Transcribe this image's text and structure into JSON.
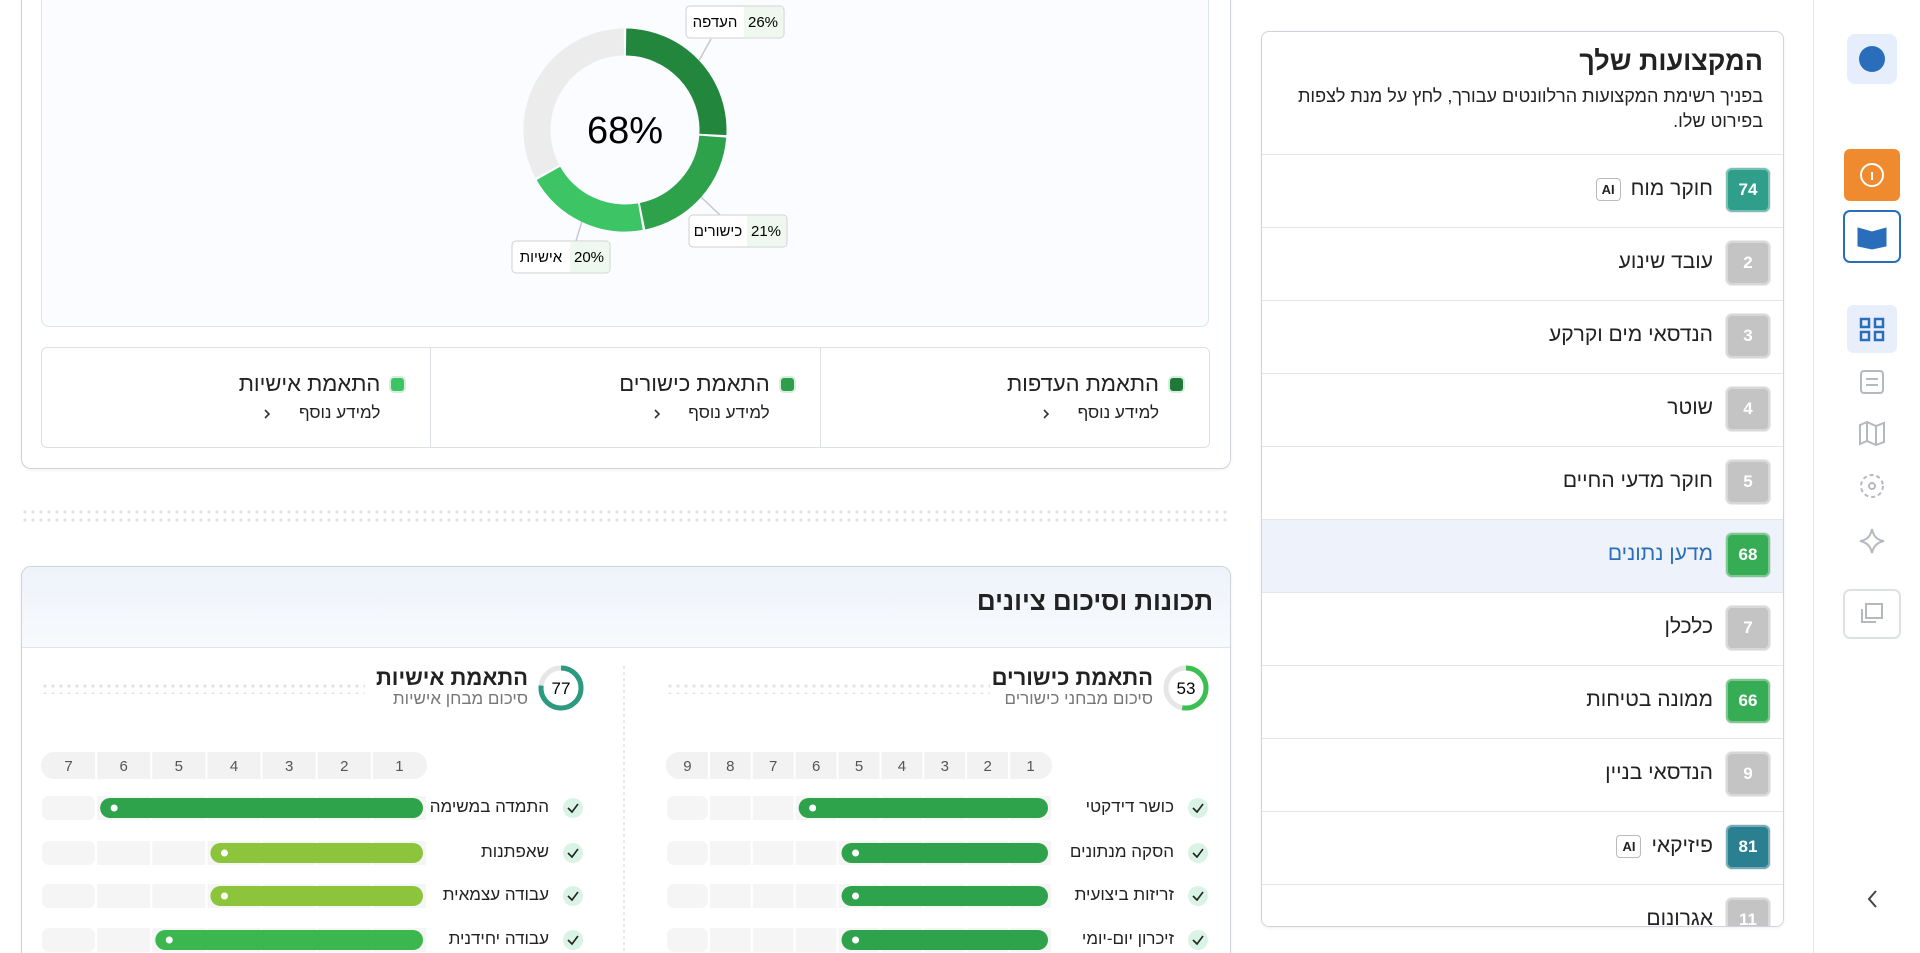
{
  "professions": {
    "title": "המקצועות שלך",
    "description": "בפניך רשימת המקצועות הרלוונטים עבורך, לחץ על מנת לצפות בפירוט שלו.",
    "items": [
      {
        "name": "חוקר מוח",
        "score": 74,
        "tag": "AI",
        "color": "#2f9f8c"
      },
      {
        "name": "עובד שינוע",
        "score": 2,
        "color": "#c4c4c4"
      },
      {
        "name": "הנדסאי מים וקרקע",
        "score": 3,
        "color": "#c4c4c4"
      },
      {
        "name": "שוטר",
        "score": 4,
        "color": "#c4c4c4"
      },
      {
        "name": "חוקר מדעי החיים",
        "score": 5,
        "color": "#c4c4c4"
      },
      {
        "name": "מדען נתונים",
        "score": 68,
        "color": "#36ad55",
        "selected": true
      },
      {
        "name": "כלכלן",
        "score": 7,
        "color": "#c4c4c4"
      },
      {
        "name": "ממונה בטיחות",
        "score": 66,
        "color": "#36ad55"
      },
      {
        "name": "הנדסאי בניין",
        "score": 9,
        "color": "#c4c4c4"
      },
      {
        "name": "פיזיקאי",
        "score": 81,
        "tag": "AI",
        "color": "#2a7f91"
      },
      {
        "name": "אגרונום",
        "score": 11,
        "color": "#c4c4c4"
      }
    ]
  },
  "match_chart": {
    "center_label": "68%",
    "remainder_color": "#ececec",
    "segments": [
      {
        "name": "העדפה",
        "value": 26,
        "value_label": "26%",
        "color": "#22873d"
      },
      {
        "name": "כישורים",
        "value": 21,
        "value_label": "21%",
        "color": "#2ea24b"
      },
      {
        "name": "אישיות",
        "value": 20,
        "value_label": "20%",
        "color": "#3dc565"
      }
    ]
  },
  "legend": [
    {
      "title": "התאמת העדפות",
      "link": "למידע נוסף",
      "color": "#1f7a3a"
    },
    {
      "title": "התאמת כישורים",
      "link": "למידע נוסף",
      "color": "#2e9e4b"
    },
    {
      "title": "התאמת אישיות",
      "link": "למידע נוסף",
      "color": "#3dc565"
    }
  ],
  "traits": {
    "title": "תכונות וסיכום ציונים",
    "panels": [
      {
        "title": "התאמת כישורים",
        "subtitle": "סיכום מבחני כישורים",
        "score": 53,
        "score_color": "#3bbf4f",
        "ticks": [
          1,
          2,
          3,
          4,
          5,
          6,
          7,
          8,
          9
        ],
        "rows": [
          {
            "name": "כושר דידקטי",
            "value": 6,
            "color": "#2fa34c"
          },
          {
            "name": "הסקה מנתונים",
            "value": 5,
            "color": "#2fa34c"
          },
          {
            "name": "זריזות ביצועית",
            "value": 5,
            "color": "#2fa34c"
          },
          {
            "name": "זיכרון יום-יומי",
            "value": 5,
            "color": "#2fa34c"
          }
        ]
      },
      {
        "title": "התאמת אישיות",
        "subtitle": "סיכום מבחן אישיות",
        "score": 77,
        "score_color": "#2c9a7e",
        "ticks": [
          1,
          2,
          3,
          4,
          5,
          6,
          7
        ],
        "rows": [
          {
            "name": "התמדה במשימה",
            "value": 6,
            "color": "#2fa34c"
          },
          {
            "name": "שאפתנות",
            "value": 4,
            "color": "#8cc53c"
          },
          {
            "name": "עבודה עצמאית",
            "value": 4,
            "color": "#8cc53c"
          },
          {
            "name": "עבודה יחידנית",
            "value": 5,
            "color": "#3cb74e"
          }
        ]
      }
    ]
  }
}
